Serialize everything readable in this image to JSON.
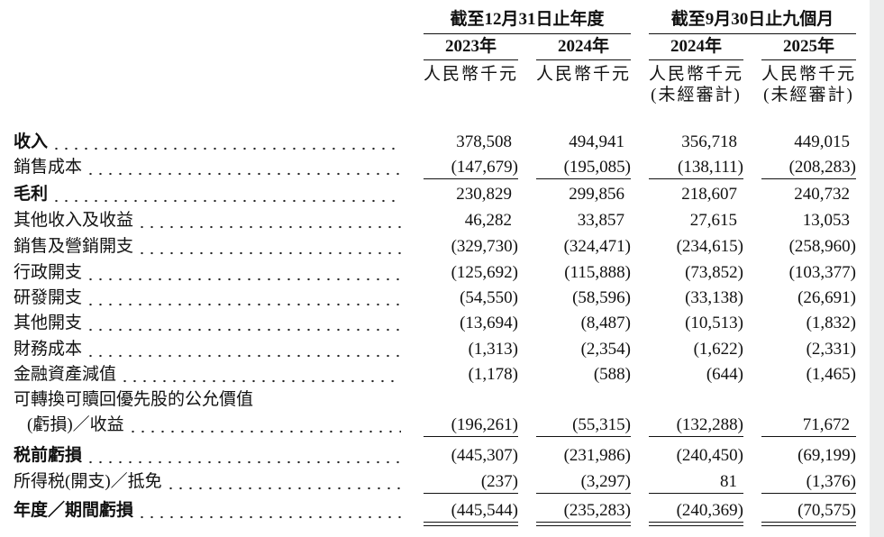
{
  "header": {
    "groups": [
      {
        "title": "截至12月31日止年度",
        "years": [
          "2023年",
          "2024年"
        ],
        "unaudited": false
      },
      {
        "title": "截至9月30日止九個月",
        "years": [
          "2024年",
          "2025年"
        ],
        "unaudited": true
      }
    ],
    "unit": "人民幣千元",
    "unaudited_note": "(未經審計)"
  },
  "table": {
    "rows": [
      {
        "label": "收入",
        "bold": true,
        "values": [
          "378,508",
          "494,941",
          "356,718",
          "449,015"
        ]
      },
      {
        "label": "銷售成本",
        "values": [
          "(147,679)",
          "(195,085)",
          "(138,111)",
          "(208,283)"
        ],
        "rule": "single"
      },
      {
        "label": "毛利",
        "bold": true,
        "values": [
          "230,829",
          "299,856",
          "218,607",
          "240,732"
        ]
      },
      {
        "label": "其他收入及收益",
        "values": [
          "46,282",
          "33,857",
          "27,615",
          "13,053"
        ]
      },
      {
        "label": "銷售及營銷開支",
        "values": [
          "(329,730)",
          "(324,471)",
          "(234,615)",
          "(258,960)"
        ]
      },
      {
        "label": "行政開支",
        "values": [
          "(125,692)",
          "(115,888)",
          "(73,852)",
          "(103,377)"
        ]
      },
      {
        "label": "研發開支",
        "values": [
          "(54,550)",
          "(58,596)",
          "(33,138)",
          "(26,691)"
        ]
      },
      {
        "label": "其他開支",
        "values": [
          "(13,694)",
          "(8,487)",
          "(10,513)",
          "(1,832)"
        ]
      },
      {
        "label": "財務成本",
        "values": [
          "(1,313)",
          "(2,354)",
          "(1,622)",
          "(2,331)"
        ]
      },
      {
        "label": "金融資產減值",
        "values": [
          "(1,178)",
          "(588)",
          "(644)",
          "(1,465)"
        ]
      },
      {
        "label": [
          "可轉換可贖回優先股的公允價值",
          "(虧損)／收益"
        ],
        "values": [
          "(196,261)",
          "(55,315)",
          "(132,288)",
          "71,672"
        ],
        "rule": "single"
      },
      {
        "label": "税前虧損",
        "bold": true,
        "values": [
          "(445,307)",
          "(231,986)",
          "(240,450)",
          "(69,199)"
        ]
      },
      {
        "label": "所得税(開支)／抵免",
        "values": [
          "(237)",
          "(3,297)",
          "81",
          "(1,376)"
        ],
        "rule": "single"
      },
      {
        "label": "年度／期間虧損",
        "bold": true,
        "values": [
          "(445,544)",
          "(235,283)",
          "(240,369)",
          "(70,575)"
        ],
        "rule": "double"
      }
    ]
  }
}
